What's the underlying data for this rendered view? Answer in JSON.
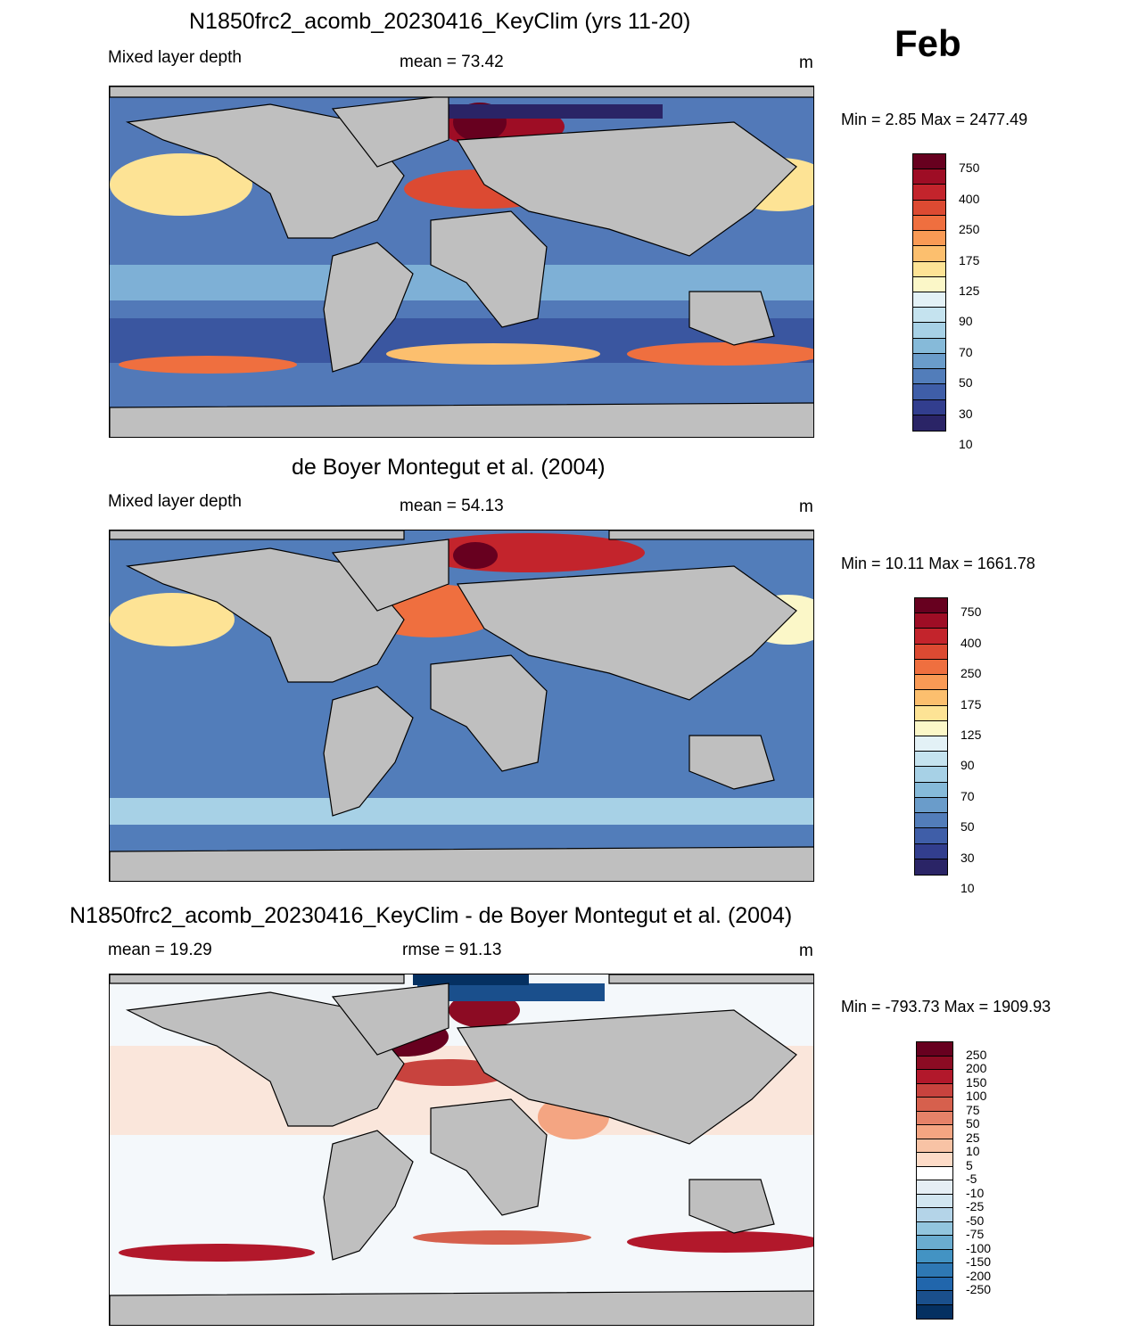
{
  "month_label": "Feb",
  "panels": [
    {
      "title": "N1850frc2_acomb_20230416_KeyClim (yrs 11-20)",
      "left_label": "Mixed layer depth",
      "center_label": "mean =  73.42",
      "units": "m",
      "minmax": "Min =   2.85 Max = 2477.49",
      "colorbar_key": "mld"
    },
    {
      "title": "de Boyer Montegut et al. (2004)",
      "left_label": "Mixed layer depth",
      "center_label": "mean =  54.13",
      "units": "m",
      "minmax": "Min =  10.11 Max = 1661.78",
      "colorbar_key": "mld"
    },
    {
      "title": "N1850frc2_acomb_20230416_KeyClim - de Boyer Montegut et al. (2004)",
      "left_label": "mean =  19.29",
      "center_label": "rmse =  91.13",
      "units": "m",
      "minmax": "Min = -793.73 Max = 1909.93",
      "colorbar_key": "diff"
    }
  ],
  "colorbars": {
    "mld": {
      "colors": [
        "#67001f",
        "#9e0d25",
        "#c3242c",
        "#dc4a32",
        "#ef6f3f",
        "#f99a55",
        "#fcbf6e",
        "#fde395",
        "#fbf7c8",
        "#e3f1f6",
        "#c5e3ef",
        "#a7d1e6",
        "#86bad9",
        "#6a9cca",
        "#527dba",
        "#3f5ea8",
        "#323e8e",
        "#2a2466"
      ],
      "labels": [
        "750",
        "400",
        "250",
        "175",
        "125",
        "90",
        "70",
        "50",
        "30",
        "10"
      ]
    },
    "diff": {
      "colors": [
        "#67001f",
        "#8c0b23",
        "#b2182b",
        "#c8433e",
        "#d6604d",
        "#e58268",
        "#f4a582",
        "#f8c3a5",
        "#fddbc7",
        "#ffffff",
        "#e5eef5",
        "#d1e5f0",
        "#b4d4e8",
        "#92c5de",
        "#6aacd0",
        "#4393c3",
        "#2e78b4",
        "#2166ac",
        "#1a4f8c",
        "#053061"
      ],
      "labels": [
        "250",
        "200",
        "150",
        "100",
        "75",
        "50",
        "25",
        "10",
        "5",
        "-5",
        "-10",
        "-25",
        "-50",
        "-75",
        "-100",
        "-150",
        "-200",
        "-250"
      ]
    }
  },
  "colors": {
    "land": "#bfbfbf",
    "coast": "#000000"
  }
}
